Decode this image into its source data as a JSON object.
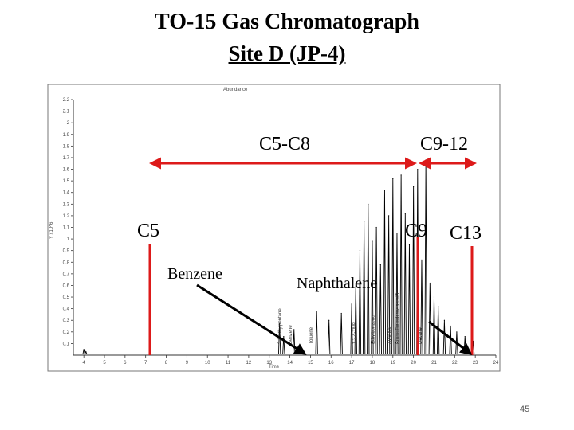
{
  "slide": {
    "title": "TO-15 Gas Chromatograph",
    "subtitle": "Site D (JP-4)",
    "page_number": "45"
  },
  "colors": {
    "frame": "#000000",
    "trace": "#000000",
    "annotation_red": "#dd1a1a",
    "annotation_arrow": "#000000"
  },
  "chart_data": {
    "type": "line",
    "title": "",
    "header_text": "Abundance",
    "xlabel": "Time",
    "ylabel": "Y x10^6",
    "xlim": [
      3.8,
      24
    ],
    "ylim": [
      0,
      2.2
    ],
    "x_ticks": [
      "4",
      "5",
      "6",
      "7",
      "8",
      "9",
      "10",
      "11",
      "12",
      "13",
      "14",
      "15",
      "16",
      "17",
      "18",
      "19",
      "20",
      "21",
      "22",
      "23",
      "24"
    ],
    "y_ticks": [
      "0.1",
      "0.2",
      "0.3",
      "0.4",
      "0.5",
      "0.6",
      "0.7",
      "0.8",
      "0.9",
      "1",
      "1.1",
      "1.2",
      "1.3",
      "1.4",
      "1.5",
      "1.6",
      "1.7",
      "1.8",
      "1.9",
      "2",
      "2.1",
      "2.2"
    ],
    "peaks": [
      {
        "x": 4.0,
        "y": 0.05
      },
      {
        "x": 4.1,
        "y": 0.03
      },
      {
        "x": 13.5,
        "y": 0.28
      },
      {
        "x": 13.7,
        "y": 0.16
      },
      {
        "x": 14.2,
        "y": 0.22
      },
      {
        "x": 15.3,
        "y": 0.38
      },
      {
        "x": 15.9,
        "y": 0.3
      },
      {
        "x": 16.5,
        "y": 0.36
      },
      {
        "x": 17.0,
        "y": 0.44
      },
      {
        "x": 17.2,
        "y": 0.62
      },
      {
        "x": 17.4,
        "y": 0.9
      },
      {
        "x": 17.6,
        "y": 1.15
      },
      {
        "x": 17.8,
        "y": 1.3
      },
      {
        "x": 18.0,
        "y": 0.98
      },
      {
        "x": 18.2,
        "y": 1.1
      },
      {
        "x": 18.4,
        "y": 0.78
      },
      {
        "x": 18.6,
        "y": 1.42
      },
      {
        "x": 18.8,
        "y": 1.2
      },
      {
        "x": 19.0,
        "y": 1.52
      },
      {
        "x": 19.2,
        "y": 1.05
      },
      {
        "x": 19.4,
        "y": 1.55
      },
      {
        "x": 19.6,
        "y": 1.22
      },
      {
        "x": 19.8,
        "y": 0.95
      },
      {
        "x": 20.0,
        "y": 1.45
      },
      {
        "x": 20.2,
        "y": 1.6
      },
      {
        "x": 20.4,
        "y": 0.82
      },
      {
        "x": 20.6,
        "y": 1.68
      },
      {
        "x": 20.8,
        "y": 0.62
      },
      {
        "x": 21.0,
        "y": 0.5
      },
      {
        "x": 21.2,
        "y": 0.42
      },
      {
        "x": 21.5,
        "y": 0.3
      },
      {
        "x": 21.8,
        "y": 0.25
      },
      {
        "x": 22.1,
        "y": 0.2
      },
      {
        "x": 22.5,
        "y": 0.16
      },
      {
        "x": 22.9,
        "y": 0.12
      }
    ],
    "peak_labels": [
      {
        "text": "2-Methylpentane",
        "x": 13.6
      },
      {
        "text": "Benzene",
        "x": 14.1
      },
      {
        "text": "Toluene",
        "x": 15.1
      },
      {
        "text": "1,2,4-TMB",
        "x": 17.2
      },
      {
        "text": "Ethylbenzene",
        "x": 18.1
      },
      {
        "text": "Xylenes",
        "x": 18.9
      },
      {
        "text": "Bromofluorobenzene d5",
        "x": 19.3
      },
      {
        "text": "Decane",
        "x": 20.4
      }
    ]
  },
  "annotations": {
    "range_c5_c8": "C5-C8",
    "range_c9_12": "C9-12",
    "c5": "C5",
    "c9": "C9",
    "c13": "C13",
    "benzene": "Benzene",
    "naphthalene": "Naphthalene"
  }
}
